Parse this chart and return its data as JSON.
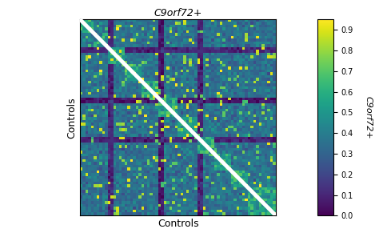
{
  "n": 70,
  "vmin": 0,
  "vmax": 0.95,
  "cbar_ticks": [
    0,
    0.1,
    0.2,
    0.3,
    0.4,
    0.5,
    0.6,
    0.7,
    0.8,
    0.9
  ],
  "title": "C9orf72+",
  "xlabel": "Controls",
  "ylabel": "Controls",
  "right_label": "C9orf72+",
  "cmap": "viridis",
  "diagonal_color": "white",
  "diagonal_lw": 3.5,
  "seed": 12345,
  "block_boundaries": [
    0,
    5,
    10,
    16,
    22,
    28,
    35,
    42,
    48,
    54,
    60,
    70
  ],
  "dark_rows": [
    28,
    29
  ],
  "base_low": 0.25,
  "base_high": 0.45,
  "within_block_low": 0.35,
  "within_block_high": 0.75,
  "figsize": [
    4.74,
    3.06
  ],
  "dpi": 100
}
